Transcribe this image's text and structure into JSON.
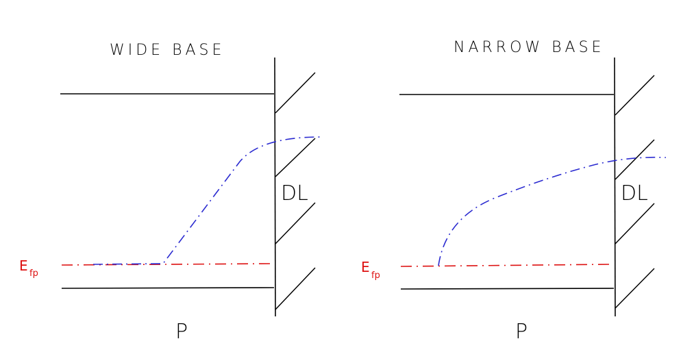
{
  "colors": {
    "ink": "#000000",
    "fermi_level": "#dd1111",
    "potential": "#2a2ad0"
  },
  "panels": [
    {
      "id": "wide-base",
      "title": "WIDE BASE",
      "region_label": "P",
      "layer_label": "DL",
      "fermi_label": {
        "main": "E",
        "sub": "fp"
      }
    },
    {
      "id": "narrow-base",
      "title": "NARROW BASE",
      "region_label": "P",
      "layer_label": "DL",
      "fermi_label": {
        "main": "E",
        "sub": "fp"
      }
    }
  ]
}
